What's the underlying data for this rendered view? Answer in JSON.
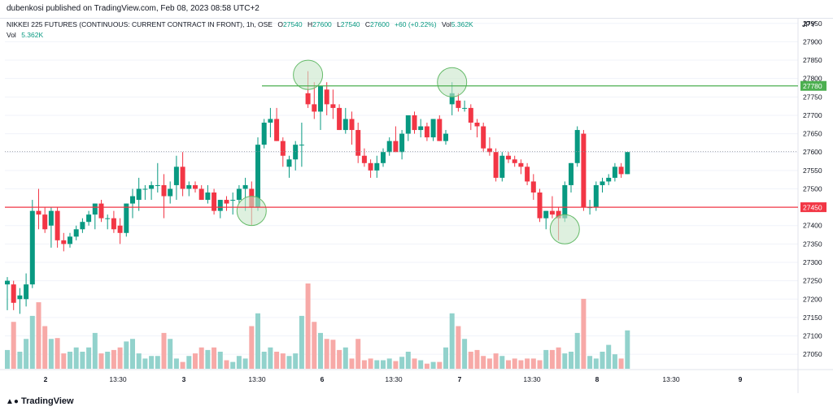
{
  "header": {
    "publisher": "dubenkosi published on TradingView.com, Feb 08, 2023 08:58 UTC+2"
  },
  "legend": {
    "symbol": "NIKKEI 225 FUTURES (CONTINUOUS: CURRENT CONTRACT IN FRONT), 1h, OSE",
    "o_label": "O",
    "o_value": "27540",
    "h_label": "H",
    "h_value": "27600",
    "l_label": "L",
    "l_value": "27540",
    "c_label": "C",
    "c_value": "27600",
    "change": "+60 (+0.22%)",
    "vol_label": "Vol",
    "vol_value": "5.362K",
    "vol_label2": "Vol",
    "vol_value2": "5.362K"
  },
  "currency": "JPY",
  "footer": {
    "logo_text": "TradingView"
  },
  "colors": {
    "up": "#089981",
    "down": "#f23645",
    "up_vol": "#92d2cc",
    "down_vol": "#f7a9a7",
    "resistance": "#4caf50",
    "support": "#f23645",
    "circle_fill": "#c8e6c9",
    "circle_stroke": "#66bb6a"
  },
  "chart_data": {
    "type": "candlestick",
    "title": "NIKKEI 225 FUTURES (CONTINUOUS: CURRENT CONTRACT IN FRONT), 1h, OSE",
    "y_axis": {
      "ticks": [
        27050,
        27100,
        27150,
        27200,
        27250,
        27300,
        27350,
        27400,
        27450,
        27500,
        27550,
        27600,
        27650,
        27700,
        27750,
        27800,
        27850,
        27900,
        27950
      ],
      "range": [
        27015,
        27965
      ]
    },
    "x_axis": {
      "tick_labels": [
        "2",
        "13:30",
        "3",
        "13:30",
        "6",
        "13:30",
        "7",
        "13:30",
        "8",
        "13:30",
        "9"
      ]
    },
    "horizontal_lines": [
      {
        "name": "resistance",
        "value": 27780,
        "label": "27780"
      },
      {
        "name": "support",
        "value": 27450,
        "label": "27450"
      }
    ],
    "last_price": 27600,
    "candles": [
      {
        "o": 27240,
        "h": 27260,
        "l": 27170,
        "c": 27250
      },
      {
        "o": 27240,
        "h": 27250,
        "l": 27170,
        "c": 27190
      },
      {
        "o": 27200,
        "h": 27230,
        "l": 27160,
        "c": 27210
      },
      {
        "o": 27200,
        "h": 27270,
        "l": 27180,
        "c": 27240
      },
      {
        "o": 27240,
        "h": 27470,
        "l": 27230,
        "c": 27440
      },
      {
        "o": 27440,
        "h": 27500,
        "l": 27390,
        "c": 27430
      },
      {
        "o": 27430,
        "h": 27450,
        "l": 27380,
        "c": 27390
      },
      {
        "o": 27400,
        "h": 27450,
        "l": 27340,
        "c": 27440
      },
      {
        "o": 27440,
        "h": 27450,
        "l": 27340,
        "c": 27360
      },
      {
        "o": 27360,
        "h": 27380,
        "l": 27330,
        "c": 27350
      },
      {
        "o": 27350,
        "h": 27380,
        "l": 27340,
        "c": 27370
      },
      {
        "o": 27370,
        "h": 27400,
        "l": 27360,
        "c": 27390
      },
      {
        "o": 27390,
        "h": 27420,
        "l": 27380,
        "c": 27410
      },
      {
        "o": 27410,
        "h": 27440,
        "l": 27400,
        "c": 27430
      },
      {
        "o": 27430,
        "h": 27460,
        "l": 27390,
        "c": 27460
      },
      {
        "o": 27460,
        "h": 27470,
        "l": 27410,
        "c": 27420
      },
      {
        "o": 27420,
        "h": 27430,
        "l": 27390,
        "c": 27420
      },
      {
        "o": 27420,
        "h": 27440,
        "l": 27380,
        "c": 27390
      },
      {
        "o": 27400,
        "h": 27420,
        "l": 27350,
        "c": 27380
      },
      {
        "o": 27380,
        "h": 27460,
        "l": 27370,
        "c": 27460
      },
      {
        "o": 27460,
        "h": 27500,
        "l": 27420,
        "c": 27480
      },
      {
        "o": 27470,
        "h": 27530,
        "l": 27440,
        "c": 27500
      },
      {
        "o": 27500,
        "h": 27510,
        "l": 27470,
        "c": 27500
      },
      {
        "o": 27500,
        "h": 27520,
        "l": 27470,
        "c": 27510
      },
      {
        "o": 27510,
        "h": 27570,
        "l": 27490,
        "c": 27510
      },
      {
        "o": 27510,
        "h": 27540,
        "l": 27420,
        "c": 27480
      },
      {
        "o": 27480,
        "h": 27520,
        "l": 27460,
        "c": 27500
      },
      {
        "o": 27510,
        "h": 27590,
        "l": 27470,
        "c": 27560
      },
      {
        "o": 27560,
        "h": 27600,
        "l": 27480,
        "c": 27500
      },
      {
        "o": 27500,
        "h": 27520,
        "l": 27480,
        "c": 27510
      },
      {
        "o": 27510,
        "h": 27520,
        "l": 27490,
        "c": 27500
      },
      {
        "o": 27500,
        "h": 27510,
        "l": 27470,
        "c": 27470
      },
      {
        "o": 27470,
        "h": 27510,
        "l": 27460,
        "c": 27490
      },
      {
        "o": 27490,
        "h": 27500,
        "l": 27430,
        "c": 27440
      },
      {
        "o": 27440,
        "h": 27470,
        "l": 27420,
        "c": 27470
      },
      {
        "o": 27470,
        "h": 27480,
        "l": 27440,
        "c": 27460
      },
      {
        "o": 27470,
        "h": 27490,
        "l": 27430,
        "c": 27470
      },
      {
        "o": 27470,
        "h": 27510,
        "l": 27460,
        "c": 27500
      },
      {
        "o": 27500,
        "h": 27530,
        "l": 27440,
        "c": 27510
      },
      {
        "o": 27500,
        "h": 27520,
        "l": 27400,
        "c": 27450
      },
      {
        "o": 27450,
        "h": 27640,
        "l": 27440,
        "c": 27620
      },
      {
        "o": 27620,
        "h": 27690,
        "l": 27610,
        "c": 27680
      },
      {
        "o": 27680,
        "h": 27720,
        "l": 27640,
        "c": 27690
      },
      {
        "o": 27690,
        "h": 27720,
        "l": 27630,
        "c": 27630
      },
      {
        "o": 27630,
        "h": 27640,
        "l": 27560,
        "c": 27590
      },
      {
        "o": 27560,
        "h": 27590,
        "l": 27530,
        "c": 27580
      },
      {
        "o": 27580,
        "h": 27630,
        "l": 27550,
        "c": 27620
      },
      {
        "o": 27620,
        "h": 27680,
        "l": 27560,
        "c": 27620
      },
      {
        "o": 27760,
        "h": 27820,
        "l": 27720,
        "c": 27730
      },
      {
        "o": 27730,
        "h": 27790,
        "l": 27690,
        "c": 27710
      },
      {
        "o": 27710,
        "h": 27780,
        "l": 27660,
        "c": 27780
      },
      {
        "o": 27770,
        "h": 27790,
        "l": 27700,
        "c": 27730
      },
      {
        "o": 27730,
        "h": 27770,
        "l": 27690,
        "c": 27720
      },
      {
        "o": 27720,
        "h": 27730,
        "l": 27660,
        "c": 27660
      },
      {
        "o": 27660,
        "h": 27720,
        "l": 27650,
        "c": 27690
      },
      {
        "o": 27690,
        "h": 27710,
        "l": 27620,
        "c": 27660
      },
      {
        "o": 27660,
        "h": 27680,
        "l": 27570,
        "c": 27590
      },
      {
        "o": 27590,
        "h": 27610,
        "l": 27560,
        "c": 27570
      },
      {
        "o": 27570,
        "h": 27580,
        "l": 27530,
        "c": 27550
      },
      {
        "o": 27550,
        "h": 27590,
        "l": 27530,
        "c": 27570
      },
      {
        "o": 27570,
        "h": 27610,
        "l": 27560,
        "c": 27600
      },
      {
        "o": 27600,
        "h": 27640,
        "l": 27590,
        "c": 27630
      },
      {
        "o": 27630,
        "h": 27670,
        "l": 27600,
        "c": 27600
      },
      {
        "o": 27600,
        "h": 27660,
        "l": 27580,
        "c": 27650
      },
      {
        "o": 27650,
        "h": 27700,
        "l": 27630,
        "c": 27700
      },
      {
        "o": 27700,
        "h": 27710,
        "l": 27650,
        "c": 27660
      },
      {
        "o": 27660,
        "h": 27690,
        "l": 27640,
        "c": 27670
      },
      {
        "o": 27670,
        "h": 27680,
        "l": 27630,
        "c": 27640
      },
      {
        "o": 27640,
        "h": 27690,
        "l": 27630,
        "c": 27690
      },
      {
        "o": 27690,
        "h": 27700,
        "l": 27630,
        "c": 27630
      },
      {
        "o": 27630,
        "h": 27660,
        "l": 27620,
        "c": 27650
      },
      {
        "o": 27730,
        "h": 27790,
        "l": 27700,
        "c": 27760
      },
      {
        "o": 27740,
        "h": 27760,
        "l": 27710,
        "c": 27720
      },
      {
        "o": 27720,
        "h": 27740,
        "l": 27710,
        "c": 27720
      },
      {
        "o": 27720,
        "h": 27730,
        "l": 27660,
        "c": 27680
      },
      {
        "o": 27680,
        "h": 27690,
        "l": 27640,
        "c": 27670
      },
      {
        "o": 27670,
        "h": 27680,
        "l": 27600,
        "c": 27610
      },
      {
        "o": 27610,
        "h": 27640,
        "l": 27590,
        "c": 27600
      },
      {
        "o": 27600,
        "h": 27610,
        "l": 27520,
        "c": 27530
      },
      {
        "o": 27530,
        "h": 27600,
        "l": 27520,
        "c": 27590
      },
      {
        "o": 27590,
        "h": 27600,
        "l": 27570,
        "c": 27580
      },
      {
        "o": 27580,
        "h": 27590,
        "l": 27560,
        "c": 27570
      },
      {
        "o": 27570,
        "h": 27580,
        "l": 27540,
        "c": 27560
      },
      {
        "o": 27560,
        "h": 27570,
        "l": 27510,
        "c": 27520
      },
      {
        "o": 27520,
        "h": 27540,
        "l": 27470,
        "c": 27490
      },
      {
        "o": 27490,
        "h": 27500,
        "l": 27410,
        "c": 27420
      },
      {
        "o": 27420,
        "h": 27440,
        "l": 27390,
        "c": 27440
      },
      {
        "o": 27440,
        "h": 27480,
        "l": 27420,
        "c": 27430
      },
      {
        "o": 27440,
        "h": 27450,
        "l": 27360,
        "c": 27420
      },
      {
        "o": 27420,
        "h": 27520,
        "l": 27410,
        "c": 27510
      },
      {
        "o": 27510,
        "h": 27570,
        "l": 27490,
        "c": 27570
      },
      {
        "o": 27570,
        "h": 27670,
        "l": 27560,
        "c": 27660
      },
      {
        "o": 27650,
        "h": 27660,
        "l": 27440,
        "c": 27450
      },
      {
        "o": 27450,
        "h": 27470,
        "l": 27430,
        "c": 27450
      },
      {
        "o": 27450,
        "h": 27520,
        "l": 27440,
        "c": 27510
      },
      {
        "o": 27510,
        "h": 27530,
        "l": 27490,
        "c": 27520
      },
      {
        "o": 27520,
        "h": 27540,
        "l": 27510,
        "c": 27530
      },
      {
        "o": 27530,
        "h": 27570,
        "l": 27520,
        "c": 27560
      },
      {
        "o": 27560,
        "h": 27570,
        "l": 27530,
        "c": 27540
      },
      {
        "o": 27540,
        "h": 27600,
        "l": 27540,
        "c": 27600
      }
    ],
    "volume_max_ratio": 1.0,
    "volumes": [
      0.22,
      0.55,
      0.2,
      0.35,
      0.62,
      0.78,
      0.5,
      0.35,
      0.36,
      0.18,
      0.2,
      0.25,
      0.2,
      0.25,
      0.42,
      0.18,
      0.2,
      0.22,
      0.25,
      0.32,
      0.35,
      0.18,
      0.12,
      0.15,
      0.15,
      0.42,
      0.35,
      0.12,
      0.08,
      0.15,
      0.18,
      0.25,
      0.22,
      0.25,
      0.2,
      0.1,
      0.08,
      0.15,
      0.12,
      0.5,
      0.65,
      0.2,
      0.25,
      0.2,
      0.18,
      0.15,
      0.18,
      0.62,
      1.0,
      0.55,
      0.42,
      0.35,
      0.34,
      0.22,
      0.25,
      0.12,
      0.35,
      0.1,
      0.12,
      0.1,
      0.1,
      0.12,
      0.09,
      0.14,
      0.2,
      0.12,
      0.1,
      0.06,
      0.08,
      0.08,
      0.25,
      0.65,
      0.5,
      0.35,
      0.2,
      0.22,
      0.15,
      0.12,
      0.18,
      0.15,
      0.1,
      0.12,
      0.1,
      0.12,
      0.12,
      0.1,
      0.22,
      0.22,
      0.25,
      0.18,
      0.2,
      0.42,
      0.82,
      0.15,
      0.12,
      0.2,
      0.28,
      0.17,
      0.12,
      0.45
    ]
  },
  "circles": [
    {
      "name": "circle-support-1",
      "x_index": 39,
      "value": 27440
    },
    {
      "name": "circle-resistance-1",
      "x_index": 48,
      "value": 27810
    },
    {
      "name": "circle-resistance-2",
      "x_index": 71,
      "value": 27790
    },
    {
      "name": "circle-support-2",
      "x_index": 89,
      "value": 27390
    }
  ]
}
